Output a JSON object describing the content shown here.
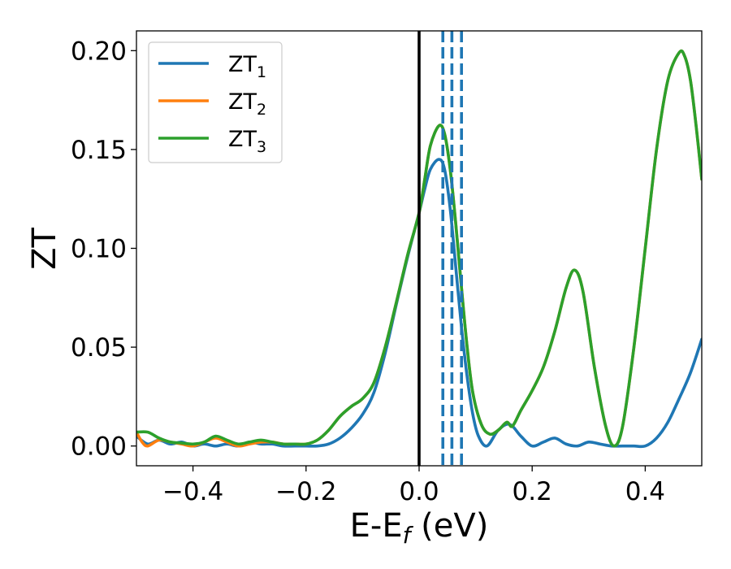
{
  "chart_data": {
    "type": "line",
    "title": "",
    "xlabel_main": "E-E",
    "xlabel_sub": "f",
    "xlabel_tail": " (eV)",
    "ylabel": "ZT",
    "xlim": [
      -0.5,
      0.5
    ],
    "ylim": [
      -0.01,
      0.21
    ],
    "xticks": [
      -0.4,
      -0.2,
      0.0,
      0.2,
      0.4
    ],
    "xtick_labels": [
      "−0.4",
      "−0.2",
      "0.0",
      "0.2",
      "0.4"
    ],
    "yticks": [
      0.0,
      0.05,
      0.1,
      0.15,
      0.2
    ],
    "ytick_labels": [
      "0.00",
      "0.05",
      "0.10",
      "0.15",
      "0.20"
    ],
    "legend_position": "top-left",
    "grid": false,
    "vline_solid": {
      "x": 0.0,
      "color": "#000000"
    },
    "vlines_dashed": {
      "x": [
        0.042,
        0.058,
        0.075
      ],
      "color": "#1f77b4"
    },
    "series": [
      {
        "name_main": "ZT",
        "name_sub": "1",
        "color": "#1f77b4",
        "points": [
          [
            -0.5,
            0.005
          ],
          [
            -0.48,
            0.001
          ],
          [
            -0.46,
            0.003
          ],
          [
            -0.44,
            0.001
          ],
          [
            -0.42,
            0.002
          ],
          [
            -0.4,
            0.0
          ],
          [
            -0.38,
            0.001
          ],
          [
            -0.36,
            0.0
          ],
          [
            -0.34,
            0.001
          ],
          [
            -0.32,
            0.0
          ],
          [
            -0.3,
            0.002
          ],
          [
            -0.28,
            0.001
          ],
          [
            -0.26,
            0.001
          ],
          [
            -0.24,
            0.0
          ],
          [
            -0.22,
            0.0
          ],
          [
            -0.2,
            0.0
          ],
          [
            -0.18,
            0.0
          ],
          [
            -0.16,
            0.001
          ],
          [
            -0.14,
            0.004
          ],
          [
            -0.12,
            0.009
          ],
          [
            -0.1,
            0.016
          ],
          [
            -0.08,
            0.027
          ],
          [
            -0.06,
            0.047
          ],
          [
            -0.04,
            0.072
          ],
          [
            -0.02,
            0.096
          ],
          [
            0.0,
            0.118
          ],
          [
            0.01,
            0.13
          ],
          [
            0.02,
            0.14
          ],
          [
            0.035,
            0.145
          ],
          [
            0.045,
            0.14
          ],
          [
            0.055,
            0.12
          ],
          [
            0.065,
            0.09
          ],
          [
            0.075,
            0.06
          ],
          [
            0.085,
            0.035
          ],
          [
            0.095,
            0.016
          ],
          [
            0.105,
            0.005
          ],
          [
            0.12,
            0.0
          ],
          [
            0.14,
            0.008
          ],
          [
            0.16,
            0.011
          ],
          [
            0.18,
            0.005
          ],
          [
            0.2,
            0.0
          ],
          [
            0.22,
            0.002
          ],
          [
            0.24,
            0.004
          ],
          [
            0.26,
            0.001
          ],
          [
            0.28,
            0.0
          ],
          [
            0.3,
            0.002
          ],
          [
            0.32,
            0.001
          ],
          [
            0.34,
            0.0
          ],
          [
            0.36,
            0.0
          ],
          [
            0.38,
            0.0
          ],
          [
            0.4,
            0.0
          ],
          [
            0.42,
            0.004
          ],
          [
            0.44,
            0.012
          ],
          [
            0.46,
            0.024
          ],
          [
            0.48,
            0.037
          ],
          [
            0.5,
            0.054
          ]
        ]
      },
      {
        "name_main": "ZT",
        "name_sub": "2",
        "color": "#ff7f0e",
        "points": [
          [
            -0.5,
            0.007
          ],
          [
            -0.49,
            0.002
          ],
          [
            -0.48,
            0.0
          ],
          [
            -0.46,
            0.003
          ],
          [
            -0.44,
            0.002
          ],
          [
            -0.42,
            0.001
          ],
          [
            -0.4,
            0.0
          ],
          [
            -0.38,
            0.002
          ],
          [
            -0.36,
            0.004
          ],
          [
            -0.34,
            0.002
          ],
          [
            -0.32,
            0.0
          ],
          [
            -0.3,
            0.001
          ],
          [
            -0.28,
            0.002
          ],
          [
            -0.26,
            0.002
          ],
          [
            -0.24,
            0.001
          ],
          [
            -0.22,
            0.001
          ],
          [
            -0.2,
            0.001
          ],
          [
            -0.18,
            0.003
          ],
          [
            -0.16,
            0.008
          ],
          [
            -0.14,
            0.015
          ],
          [
            -0.12,
            0.02
          ],
          [
            -0.1,
            0.024
          ],
          [
            -0.08,
            0.032
          ],
          [
            -0.06,
            0.05
          ],
          [
            -0.04,
            0.073
          ],
          [
            -0.02,
            0.097
          ],
          [
            0.0,
            0.118
          ],
          [
            0.01,
            0.135
          ],
          [
            0.02,
            0.152
          ],
          [
            0.035,
            0.162
          ],
          [
            0.045,
            0.158
          ],
          [
            0.055,
            0.14
          ],
          [
            0.065,
            0.112
          ],
          [
            0.075,
            0.08
          ],
          [
            0.085,
            0.05
          ],
          [
            0.095,
            0.027
          ],
          [
            0.11,
            0.011
          ],
          [
            0.125,
            0.006
          ],
          [
            0.14,
            0.008
          ],
          [
            0.155,
            0.012
          ],
          [
            0.165,
            0.01
          ],
          [
            0.18,
            0.018
          ],
          [
            0.2,
            0.028
          ],
          [
            0.22,
            0.04
          ],
          [
            0.24,
            0.058
          ],
          [
            0.26,
            0.08
          ],
          [
            0.275,
            0.089
          ],
          [
            0.29,
            0.078
          ],
          [
            0.31,
            0.04
          ],
          [
            0.33,
            0.01
          ],
          [
            0.345,
            0.0
          ],
          [
            0.36,
            0.01
          ],
          [
            0.38,
            0.05
          ],
          [
            0.4,
            0.1
          ],
          [
            0.42,
            0.15
          ],
          [
            0.44,
            0.185
          ],
          [
            0.46,
            0.199
          ],
          [
            0.47,
            0.197
          ],
          [
            0.48,
            0.185
          ],
          [
            0.49,
            0.162
          ],
          [
            0.5,
            0.135
          ]
        ]
      },
      {
        "name_main": "ZT",
        "name_sub": "3",
        "color": "#2ca02c",
        "points": [
          [
            -0.5,
            0.007
          ],
          [
            -0.48,
            0.007
          ],
          [
            -0.46,
            0.004
          ],
          [
            -0.44,
            0.002
          ],
          [
            -0.42,
            0.0015
          ],
          [
            -0.4,
            0.001
          ],
          [
            -0.38,
            0.002
          ],
          [
            -0.36,
            0.005
          ],
          [
            -0.34,
            0.003
          ],
          [
            -0.32,
            0.001
          ],
          [
            -0.3,
            0.002
          ],
          [
            -0.28,
            0.003
          ],
          [
            -0.26,
            0.002
          ],
          [
            -0.24,
            0.001
          ],
          [
            -0.22,
            0.001
          ],
          [
            -0.2,
            0.001
          ],
          [
            -0.18,
            0.003
          ],
          [
            -0.16,
            0.008
          ],
          [
            -0.14,
            0.015
          ],
          [
            -0.12,
            0.02
          ],
          [
            -0.1,
            0.024
          ],
          [
            -0.08,
            0.032
          ],
          [
            -0.06,
            0.05
          ],
          [
            -0.04,
            0.073
          ],
          [
            -0.02,
            0.097
          ],
          [
            0.0,
            0.118
          ],
          [
            0.01,
            0.135
          ],
          [
            0.02,
            0.152
          ],
          [
            0.035,
            0.162
          ],
          [
            0.045,
            0.158
          ],
          [
            0.055,
            0.14
          ],
          [
            0.065,
            0.112
          ],
          [
            0.075,
            0.08
          ],
          [
            0.085,
            0.05
          ],
          [
            0.095,
            0.027
          ],
          [
            0.11,
            0.011
          ],
          [
            0.125,
            0.006
          ],
          [
            0.14,
            0.008
          ],
          [
            0.155,
            0.012
          ],
          [
            0.165,
            0.01
          ],
          [
            0.18,
            0.018
          ],
          [
            0.2,
            0.028
          ],
          [
            0.22,
            0.04
          ],
          [
            0.24,
            0.058
          ],
          [
            0.26,
            0.08
          ],
          [
            0.275,
            0.089
          ],
          [
            0.29,
            0.078
          ],
          [
            0.31,
            0.04
          ],
          [
            0.33,
            0.01
          ],
          [
            0.345,
            0.0
          ],
          [
            0.36,
            0.01
          ],
          [
            0.38,
            0.05
          ],
          [
            0.4,
            0.1
          ],
          [
            0.42,
            0.15
          ],
          [
            0.44,
            0.185
          ],
          [
            0.46,
            0.199
          ],
          [
            0.47,
            0.197
          ],
          [
            0.48,
            0.185
          ],
          [
            0.49,
            0.162
          ],
          [
            0.5,
            0.135
          ]
        ]
      }
    ]
  }
}
